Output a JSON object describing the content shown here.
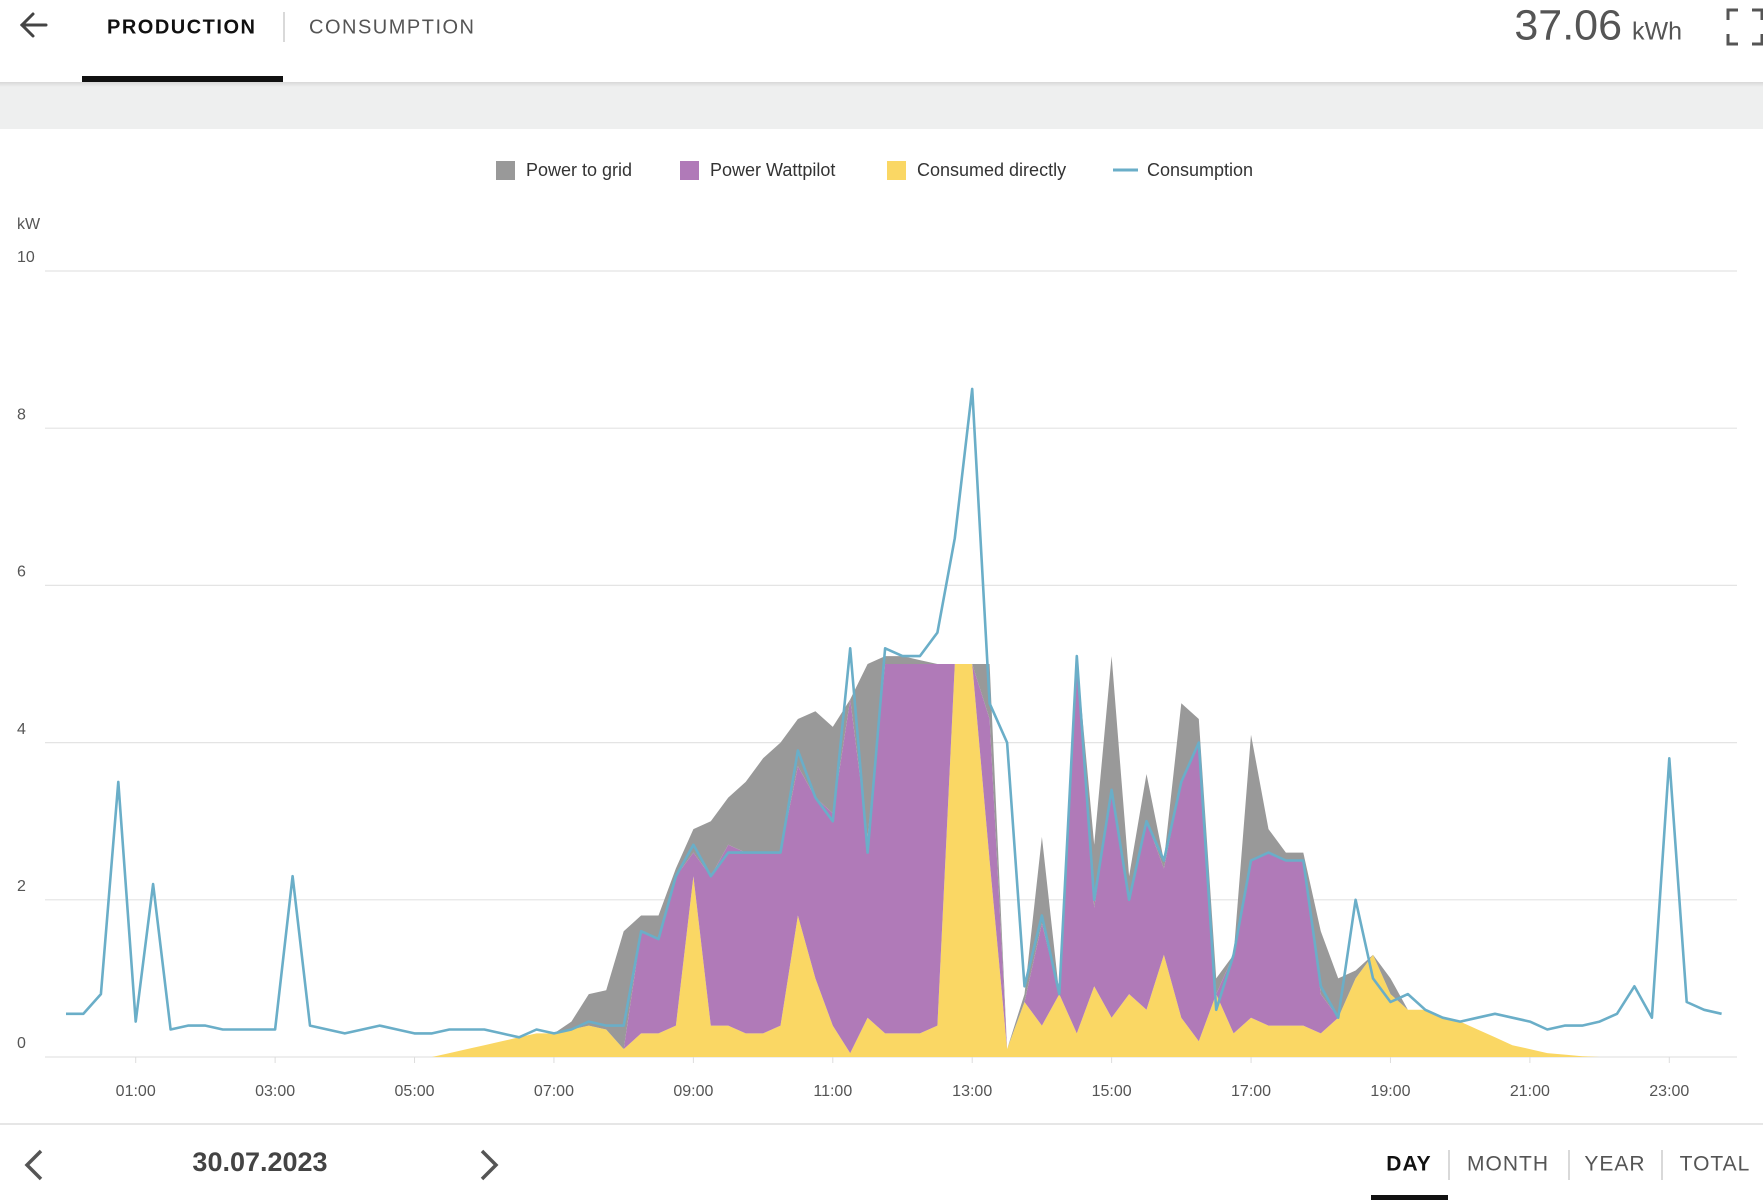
{
  "header": {
    "tabs": [
      "PRODUCTION",
      "CONSUMPTION"
    ],
    "total": 37.06,
    "total_unit": "kWh"
  },
  "chart_data": {
    "type": "area",
    "y_label": "kW",
    "xlim": [
      0,
      24
    ],
    "ylim": [
      0,
      10
    ],
    "yticks": [
      0,
      2,
      4,
      6,
      8,
      10
    ],
    "xticks": [
      {
        "value": 1,
        "label": "01:00"
      },
      {
        "value": 3,
        "label": "03:00"
      },
      {
        "value": 5,
        "label": "05:00"
      },
      {
        "value": 7,
        "label": "07:00"
      },
      {
        "value": 9,
        "label": "09:00"
      },
      {
        "value": 11,
        "label": "11:00"
      },
      {
        "value": 13,
        "label": "13:00"
      },
      {
        "value": 15,
        "label": "15:00"
      },
      {
        "value": 17,
        "label": "17:00"
      },
      {
        "value": 19,
        "label": "19:00"
      },
      {
        "value": 21,
        "label": "21:00"
      },
      {
        "value": 23,
        "label": "23:00"
      }
    ],
    "grid": true,
    "stacked": true,
    "x": [
      0,
      0.25,
      0.5,
      0.75,
      1,
      1.25,
      1.5,
      1.75,
      2,
      2.25,
      2.5,
      2.75,
      3,
      3.25,
      3.5,
      3.75,
      4,
      4.25,
      4.5,
      4.75,
      5,
      5.25,
      5.5,
      5.75,
      6,
      6.25,
      6.5,
      6.75,
      7,
      7.25,
      7.5,
      7.75,
      8,
      8.25,
      8.5,
      8.75,
      9,
      9.25,
      9.5,
      9.75,
      10,
      10.25,
      10.5,
      10.75,
      11,
      11.25,
      11.5,
      11.75,
      12,
      12.25,
      12.5,
      12.75,
      13,
      13.25,
      13.5,
      13.75,
      14,
      14.25,
      14.5,
      14.75,
      15,
      15.25,
      15.5,
      15.75,
      16,
      16.25,
      16.5,
      16.75,
      17,
      17.25,
      17.5,
      17.75,
      18,
      18.25,
      18.5,
      18.75,
      19,
      19.25,
      19.5,
      19.75,
      20,
      20.25,
      20.5,
      20.75,
      21,
      21.25,
      21.5,
      21.75,
      22,
      22.25,
      22.5,
      22.75,
      23,
      23.25,
      23.5,
      23.75
    ],
    "series": [
      {
        "name": "Power to grid",
        "type": "area",
        "color": "#999999",
        "values": [
          0,
          0,
          0,
          0,
          0,
          0,
          0,
          0,
          0,
          0,
          0,
          0,
          0,
          0,
          0,
          0,
          0,
          0,
          0,
          0,
          0,
          0,
          0,
          0,
          0,
          0,
          0,
          0,
          0,
          0.1,
          0.4,
          0.5,
          1.5,
          0.2,
          0.3,
          0.1,
          0.3,
          0.7,
          0.6,
          0.9,
          1.2,
          1.4,
          0.6,
          1.1,
          1.1,
          0,
          2.2,
          0.1,
          0.1,
          0.05,
          0,
          0,
          0,
          0.7,
          0,
          0.1,
          1.1,
          0,
          0.1,
          0.8,
          1.7,
          0.3,
          0.6,
          0.1,
          1.0,
          0.3,
          0.2,
          0,
          1.6,
          0.3,
          0.1,
          0.1,
          0.8,
          0.5,
          0.1,
          0,
          0.2,
          0,
          0,
          0,
          0,
          0,
          0,
          0,
          0,
          0,
          0,
          0,
          0,
          0,
          0,
          0,
          0,
          0,
          0,
          0
        ]
      },
      {
        "name": "Power Wattpilot",
        "type": "area",
        "color": "#b07ab8",
        "values": [
          0,
          0,
          0,
          0,
          0,
          0,
          0,
          0,
          0,
          0,
          0,
          0,
          0,
          0,
          0,
          0,
          0,
          0,
          0,
          0,
          0,
          0,
          0,
          0,
          0,
          0,
          0,
          0,
          0,
          0,
          0,
          0,
          0,
          1.3,
          1.2,
          1.9,
          0.3,
          1.9,
          2.3,
          2.3,
          2.3,
          2.2,
          1.9,
          2.3,
          2.7,
          4.5,
          2.3,
          4.7,
          4.7,
          4.7,
          4.6,
          0,
          0,
          1.8,
          0,
          0,
          1.3,
          0,
          4.7,
          1.0,
          2.9,
          1.2,
          2.4,
          1.1,
          3.0,
          3.8,
          0,
          1.0,
          2.0,
          2.2,
          2.1,
          2.1,
          0.5,
          0,
          0,
          0,
          0,
          0,
          0,
          0,
          0,
          0,
          0,
          0,
          0,
          0,
          0,
          0,
          0,
          0,
          0,
          0,
          0,
          0,
          0,
          0
        ]
      },
      {
        "name": "Consumed directly",
        "type": "area",
        "color": "#fad764",
        "values": [
          0,
          0,
          0,
          0,
          0,
          0,
          0,
          0,
          0,
          0,
          0,
          0,
          0,
          0,
          0,
          0,
          0,
          0,
          0,
          0,
          0,
          0,
          0.05,
          0.1,
          0.15,
          0.2,
          0.25,
          0.3,
          0.3,
          0.35,
          0.4,
          0.35,
          0.1,
          0.3,
          0.3,
          0.4,
          2.3,
          0.4,
          0.4,
          0.3,
          0.3,
          0.4,
          1.8,
          1.0,
          0.4,
          0.05,
          0.5,
          0.3,
          0.3,
          0.3,
          0.4,
          5.0,
          5.0,
          2.5,
          0.1,
          0.7,
          0.4,
          0.8,
          0.3,
          0.9,
          0.5,
          0.8,
          0.6,
          1.3,
          0.5,
          0.2,
          0.8,
          0.3,
          0.5,
          0.4,
          0.4,
          0.4,
          0.3,
          0.5,
          1.0,
          1.3,
          0.8,
          0.6,
          0.6,
          0.5,
          0.45,
          0.35,
          0.25,
          0.15,
          0.1,
          0.05,
          0.03,
          0.01,
          0,
          0,
          0,
          0,
          0,
          0,
          0,
          0
        ]
      },
      {
        "name": "Consumption",
        "type": "line",
        "color": "#6aaec8",
        "values": [
          0.55,
          0.55,
          0.8,
          3.5,
          0.45,
          2.2,
          0.35,
          0.4,
          0.4,
          0.35,
          0.35,
          0.35,
          0.35,
          2.3,
          0.4,
          0.35,
          0.3,
          0.35,
          0.4,
          0.35,
          0.3,
          0.3,
          0.35,
          0.35,
          0.35,
          0.3,
          0.25,
          0.35,
          0.3,
          0.35,
          0.45,
          0.4,
          0.4,
          1.6,
          1.5,
          2.3,
          2.7,
          2.3,
          2.6,
          2.6,
          2.6,
          2.6,
          3.9,
          3.3,
          3.0,
          5.2,
          2.6,
          5.2,
          5.1,
          5.1,
          5.4,
          6.6,
          8.5,
          4.5,
          4.0,
          0.9,
          1.8,
          0.8,
          5.1,
          2.0,
          3.4,
          2.0,
          3.0,
          2.5,
          3.5,
          4.0,
          0.6,
          1.3,
          2.5,
          2.6,
          2.5,
          2.5,
          0.9,
          0.5,
          2.0,
          1.0,
          0.7,
          0.8,
          0.6,
          0.5,
          0.45,
          0.5,
          0.55,
          0.5,
          0.45,
          0.35,
          0.4,
          0.4,
          0.45,
          0.55,
          0.9,
          0.5,
          3.8,
          0.7,
          0.6,
          0.55
        ]
      }
    ]
  },
  "footer": {
    "date": "30.07.2023",
    "periods": [
      "DAY",
      "MONTH",
      "YEAR",
      "TOTAL"
    ]
  }
}
